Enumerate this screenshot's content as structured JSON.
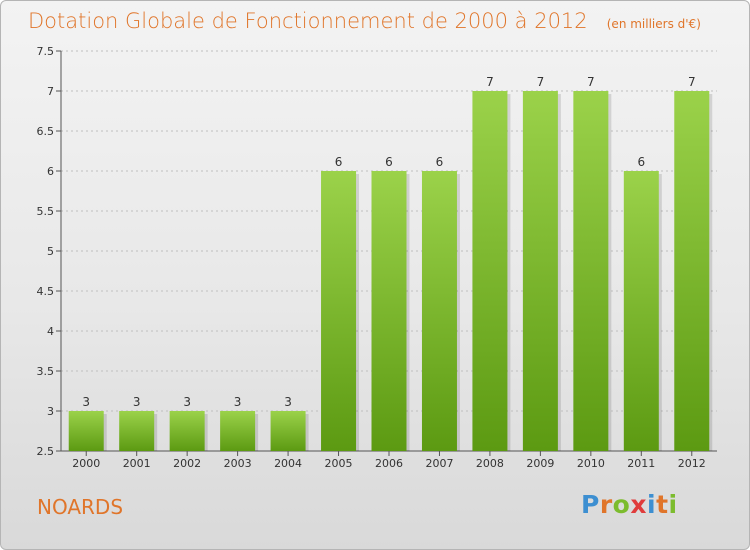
{
  "title": "Dotation Globale de Fonctionnement de 2000 à 2012",
  "unit": "(en milliers d'€)",
  "commune": "NOARDS",
  "logo": {
    "letters": [
      "P",
      "r",
      "o",
      "x",
      "i",
      "t",
      "i"
    ],
    "colors": [
      "#3d8fd1",
      "#e0752a",
      "#7cbc2e",
      "#e03c3c",
      "#3d8fd1",
      "#e0752a",
      "#7cbc2e"
    ]
  },
  "colors": {
    "bar_top": "#9bd24a",
    "bar_bottom": "#5c9a12",
    "accent": "#e0752a",
    "grid": "#bfbfbf"
  },
  "chart_data": {
    "type": "bar",
    "categories": [
      "2000",
      "2001",
      "2002",
      "2003",
      "2004",
      "2005",
      "2006",
      "2007",
      "2008",
      "2009",
      "2010",
      "2011",
      "2012"
    ],
    "values": [
      3,
      3,
      3,
      3,
      3,
      6,
      6,
      6,
      7,
      7,
      7,
      6,
      7
    ],
    "ylim": [
      2.5,
      7.5
    ],
    "yticks": [
      "2.5",
      "3",
      "3.5",
      "4",
      "4.5",
      "5",
      "5.5",
      "6",
      "6.5",
      "7",
      "7.5"
    ],
    "grid": true,
    "data_labels": true
  }
}
